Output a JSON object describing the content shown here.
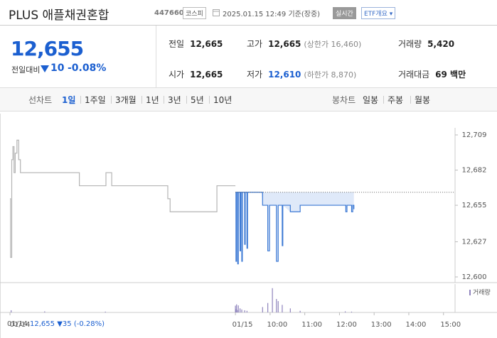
{
  "header": {
    "title": "PLUS 애플채권혼합",
    "code": "447660",
    "market": "코스피",
    "timestamp": "2025.01.15 12:49",
    "status": "기준(장중)",
    "realtime": "실시간",
    "menu": "ETF개요"
  },
  "price": {
    "current": "12,655",
    "change_label": "전일대비",
    "change": "10",
    "change_rate": "-0.08%"
  },
  "stats": [
    [
      {
        "label": "전일",
        "value": "12,665"
      },
      {
        "label": "고가",
        "value": "12,665",
        "note": "(상한가 16,460)"
      },
      {
        "label": "거래량",
        "value": "5,420"
      }
    ],
    [
      {
        "label": "시가",
        "value": "12,665"
      },
      {
        "label": "저가",
        "value": "12,610",
        "note": "(하한가 8,870)"
      },
      {
        "label": "거래대금",
        "value": "69 백만"
      }
    ]
  ],
  "tabs": {
    "line_label": "선차트",
    "line": [
      "1일",
      "1주일",
      "3개월",
      "1년",
      "3년",
      "5년",
      "10년"
    ],
    "selected": 0,
    "candle_label": "봉차트",
    "candle": [
      "일봉",
      "주봉",
      "월봉"
    ]
  },
  "chart_data": {
    "type": "line",
    "series": [
      {
        "color": "#b4b4b4",
        "x": [
          -390,
          -389,
          -387,
          -385,
          -383,
          -381,
          -378,
          -375,
          -372,
          -333,
          -331,
          -272,
          -270,
          -226,
          -224,
          -216,
          -214,
          -120,
          -117,
          -113,
          -34,
          -32,
          0
        ],
        "values": [
          12660,
          12615,
          12690,
          12700,
          12680,
          12695,
          12705,
          12690,
          12680,
          12680,
          12680,
          12680,
          12670,
          12670,
          12680,
          12680,
          12670,
          12670,
          12660,
          12650,
          12650,
          12670,
          12670
        ]
      },
      {
        "color": "#3a78d4",
        "x": [
          0,
          1,
          2,
          4,
          5,
          8,
          9,
          11,
          12,
          15,
          16,
          17,
          19,
          20,
          21,
          45,
          47,
          55,
          56,
          58,
          59,
          70,
          71,
          73,
          74,
          80,
          81,
          82,
          95,
          110,
          112,
          190,
          191,
          193,
          200,
          201,
          203,
          205
        ],
        "values": [
          12665,
          12612,
          12665,
          12610,
          12665,
          12620,
          12665,
          12612,
          12665,
          12665,
          12625,
          12665,
          12665,
          12622,
          12665,
          12665,
          12655,
          12655,
          12620,
          12620,
          12655,
          12655,
          12612,
          12612,
          12655,
          12655,
          12624,
          12655,
          12650,
          12650,
          12655,
          12655,
          12650,
          12655,
          12655,
          12650,
          12655,
          12652
        ]
      }
    ],
    "reference": 12665,
    "fill": "#dfe9f9",
    "xlim": [
      -395,
      380
    ],
    "xticks": [
      {
        "value": -390,
        "label": "01/14"
      },
      {
        "value": 0,
        "label": "01/15"
      },
      {
        "value": 60,
        "label": "10:00"
      },
      {
        "value": 120,
        "label": "11:00"
      },
      {
        "value": 180,
        "label": "12:00"
      },
      {
        "value": 240,
        "label": "13:00"
      },
      {
        "value": 300,
        "label": "14:00"
      },
      {
        "value": 360,
        "label": "15:00"
      }
    ],
    "ylim": [
      12600,
      12709
    ],
    "yticks": [
      {
        "value": 12600,
        "label": "12,600"
      },
      {
        "value": 12627,
        "label": "12,627"
      },
      {
        "value": 12655,
        "label": "12,655"
      },
      {
        "value": 12682,
        "label": "12,682"
      },
      {
        "value": 12709,
        "label": "12,709"
      }
    ],
    "volume": {
      "name": "거래량",
      "color": "#8f84bd",
      "ylim": [
        0,
        1000
      ],
      "x": [
        -388,
        -330,
        -225,
        0,
        1,
        2,
        4,
        5,
        8,
        11,
        16,
        20,
        47,
        56,
        64,
        71,
        74,
        81,
        95,
        112,
        190,
        201
      ],
      "values": [
        80,
        40,
        30,
        250,
        120,
        300,
        90,
        260,
        150,
        110,
        80,
        60,
        200,
        350,
        900,
        500,
        420,
        280,
        150,
        60,
        40,
        30
      ]
    }
  },
  "info": {
    "date": "01/14",
    "price": "12,655",
    "change": "▼35",
    "rate": "(-0.28%)"
  }
}
